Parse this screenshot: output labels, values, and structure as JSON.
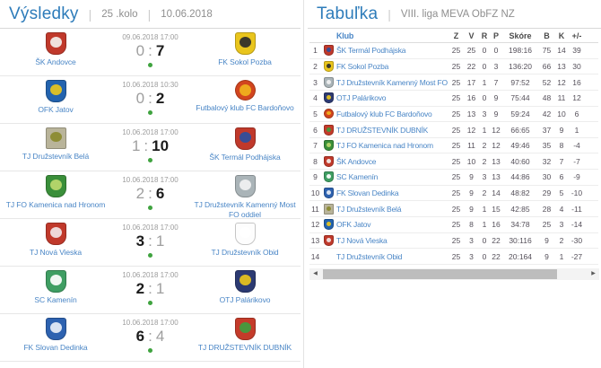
{
  "results": {
    "title": "Výsledky",
    "round": "25 .kolo",
    "date": "10.06.2018",
    "score_separator": ":",
    "matches": [
      {
        "home": "ŠK Andovce",
        "away": "FK Sokol Pozba",
        "datetime": "09.06.2018 17:00",
        "home_score": "0",
        "away_score": "7",
        "winner": "away"
      },
      {
        "home": "OFK Jatov",
        "away": "Futbalový klub FC Bardoňovo",
        "datetime": "10.06.2018 10:30",
        "home_score": "0",
        "away_score": "2",
        "winner": "away"
      },
      {
        "home": "TJ Družstevník Belá",
        "away": "ŠK Termál Podhájska",
        "datetime": "10.06.2018 17:00",
        "home_score": "1",
        "away_score": "10",
        "winner": "away"
      },
      {
        "home": "TJ FO Kamenica nad Hronom",
        "away": "TJ Družstevník Kamenný Most FO oddiel",
        "datetime": "10.06.2018 17:00",
        "home_score": "2",
        "away_score": "6",
        "winner": "away"
      },
      {
        "home": "TJ Nová Vieska",
        "away": "TJ Družstevník Obid",
        "datetime": "10.06.2018 17:00",
        "home_score": "3",
        "away_score": "1",
        "winner": "home"
      },
      {
        "home": "SC Kamenín",
        "away": "OTJ Palárikovo",
        "datetime": "10.06.2018 17:00",
        "home_score": "2",
        "away_score": "1",
        "winner": "home"
      },
      {
        "home": "FK Slovan Dedinka",
        "away": "TJ DRUŽSTEVNÍK DUBNÍK",
        "datetime": "10.06.2018 17:00",
        "home_score": "6",
        "away_score": "4",
        "winner": "home"
      }
    ]
  },
  "table": {
    "title": "Tabuľka",
    "league": "VIII. liga MEVA ObFZ NZ",
    "columns": [
      "Klub",
      "Z",
      "V",
      "R",
      "P",
      "Skóre",
      "B",
      "K",
      "+/-"
    ],
    "rows": [
      {
        "pos": "1",
        "club": "ŠK Termál Podhájska",
        "z": "25",
        "v": "25",
        "r": "0",
        "p": "0",
        "score": "198:16",
        "b": "75",
        "k": "14",
        "diff": "39"
      },
      {
        "pos": "2",
        "club": "FK Sokol Pozba",
        "z": "25",
        "v": "22",
        "r": "0",
        "p": "3",
        "score": "136:20",
        "b": "66",
        "k": "13",
        "diff": "30"
      },
      {
        "pos": "3",
        "club": "TJ Družstevník Kamenný Most FO oddiel",
        "z": "25",
        "v": "17",
        "r": "1",
        "p": "7",
        "score": "97:52",
        "b": "52",
        "k": "12",
        "diff": "16"
      },
      {
        "pos": "4",
        "club": "OTJ Palárikovo",
        "z": "25",
        "v": "16",
        "r": "0",
        "p": "9",
        "score": "75:44",
        "b": "48",
        "k": "11",
        "diff": "12"
      },
      {
        "pos": "5",
        "club": "Futbalový klub FC Bardoňovo",
        "z": "25",
        "v": "13",
        "r": "3",
        "p": "9",
        "score": "59:24",
        "b": "42",
        "k": "10",
        "diff": "6"
      },
      {
        "pos": "6",
        "club": "TJ DRUŽSTEVNÍK DUBNÍK",
        "z": "25",
        "v": "12",
        "r": "1",
        "p": "12",
        "score": "66:65",
        "b": "37",
        "k": "9",
        "diff": "1"
      },
      {
        "pos": "7",
        "club": "TJ FO Kamenica nad Hronom",
        "z": "25",
        "v": "11",
        "r": "2",
        "p": "12",
        "score": "49:46",
        "b": "35",
        "k": "8",
        "diff": "-4"
      },
      {
        "pos": "8",
        "club": "ŠK Andovce",
        "z": "25",
        "v": "10",
        "r": "2",
        "p": "13",
        "score": "40:60",
        "b": "32",
        "k": "7",
        "diff": "-7"
      },
      {
        "pos": "9",
        "club": "SC Kamenín",
        "z": "25",
        "v": "9",
        "r": "3",
        "p": "13",
        "score": "44:86",
        "b": "30",
        "k": "6",
        "diff": "-9"
      },
      {
        "pos": "10",
        "club": "FK Slovan Dedinka",
        "z": "25",
        "v": "9",
        "r": "2",
        "p": "14",
        "score": "48:82",
        "b": "29",
        "k": "5",
        "diff": "-10"
      },
      {
        "pos": "11",
        "club": "TJ Družstevník Belá",
        "z": "25",
        "v": "9",
        "r": "1",
        "p": "15",
        "score": "42:85",
        "b": "28",
        "k": "4",
        "diff": "-11"
      },
      {
        "pos": "12",
        "club": "OFK Jatov",
        "z": "25",
        "v": "8",
        "r": "1",
        "p": "16",
        "score": "34:78",
        "b": "25",
        "k": "3",
        "diff": "-14"
      },
      {
        "pos": "13",
        "club": "TJ Nová Vieska",
        "z": "25",
        "v": "3",
        "r": "0",
        "p": "22",
        "score": "30:116",
        "b": "9",
        "k": "2",
        "diff": "-30"
      },
      {
        "pos": "14",
        "club": "TJ Družstevník Obid",
        "z": "25",
        "v": "3",
        "r": "0",
        "p": "22",
        "score": "20:164",
        "b": "9",
        "k": "1",
        "diff": "-27"
      }
    ]
  },
  "crests": {
    "andovce": {
      "c1": "#c0392b",
      "c2": "#f4f0ec",
      "shape": "shield"
    },
    "pozba": {
      "c1": "#e9c51d",
      "c2": "#2b2b2b",
      "shape": "shield"
    },
    "jatov": {
      "c1": "#2363ae",
      "c2": "#e9c51d",
      "shape": "shield"
    },
    "bardonovo": {
      "c1": "#d2451e",
      "c2": "#f0b31d",
      "shape": "circle"
    },
    "bela": {
      "c1": "#b9b49a",
      "c2": "#8a8a2e",
      "shape": "square"
    },
    "podhajska": {
      "c1": "#c0392b",
      "c2": "#2d4f9e",
      "shape": "shield"
    },
    "kamenica": {
      "c1": "#3a8f3a",
      "c2": "#bcd96e",
      "shape": "shield"
    },
    "kamenny_most": {
      "c1": "#aab4b8",
      "c2": "#f2f2f2",
      "shape": "shield"
    },
    "nova_vieska": {
      "c1": "#c0392b",
      "c2": "#f2e6e6",
      "shape": "shield"
    },
    "obid": {
      "c1": "#fdfdfd",
      "c2": "#ffffff",
      "shape": "shield"
    },
    "kamenin": {
      "c1": "#3f9e63",
      "c2": "#ffffff",
      "shape": "shield"
    },
    "palarikovo": {
      "c1": "#2c3a72",
      "c2": "#e9c51d",
      "shape": "shield"
    },
    "dedinka": {
      "c1": "#2d62b0",
      "c2": "#e8eef7",
      "shape": "shield"
    },
    "dubnik": {
      "c1": "#c43b2a",
      "c2": "#3f9e3f",
      "shape": "shield"
    }
  },
  "colors": {
    "accent_blue": "#2e7cba",
    "link_blue": "#4a86c6",
    "win_dot_green": "#3fa33f",
    "muted_text": "#9a9a9a",
    "number_text": "#55505a"
  }
}
